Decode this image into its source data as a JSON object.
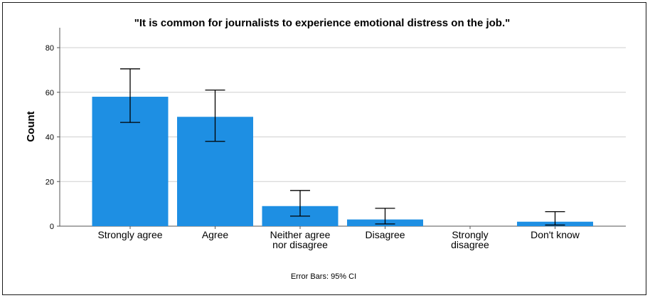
{
  "chart_data": {
    "type": "bar",
    "title": "\"It is common for journalists to experience emotional distress on the job.\"",
    "xlabel": "",
    "ylabel": "Count",
    "categories": [
      [
        "Strongly agree"
      ],
      [
        "Agree"
      ],
      [
        "Neither agree",
        "nor disagree"
      ],
      [
        "Disagree"
      ],
      [
        "Strongly",
        "disagree"
      ],
      [
        "Don't know"
      ]
    ],
    "values": [
      58,
      49,
      9,
      3,
      0,
      2
    ],
    "error_bars": {
      "type": "95% CI",
      "lower": [
        46.5,
        38,
        4.5,
        1,
        null,
        0.5
      ],
      "upper": [
        70.5,
        61,
        16,
        8,
        null,
        6.5
      ]
    },
    "ylim": [
      0,
      80
    ],
    "yticks": [
      0,
      20,
      40,
      60,
      80
    ],
    "grid": true,
    "footnote": "Error Bars: 95% CI",
    "bar_color": "#1e8fe3",
    "grid_color": "#cfcfcf",
    "axis_color": "#555555"
  }
}
